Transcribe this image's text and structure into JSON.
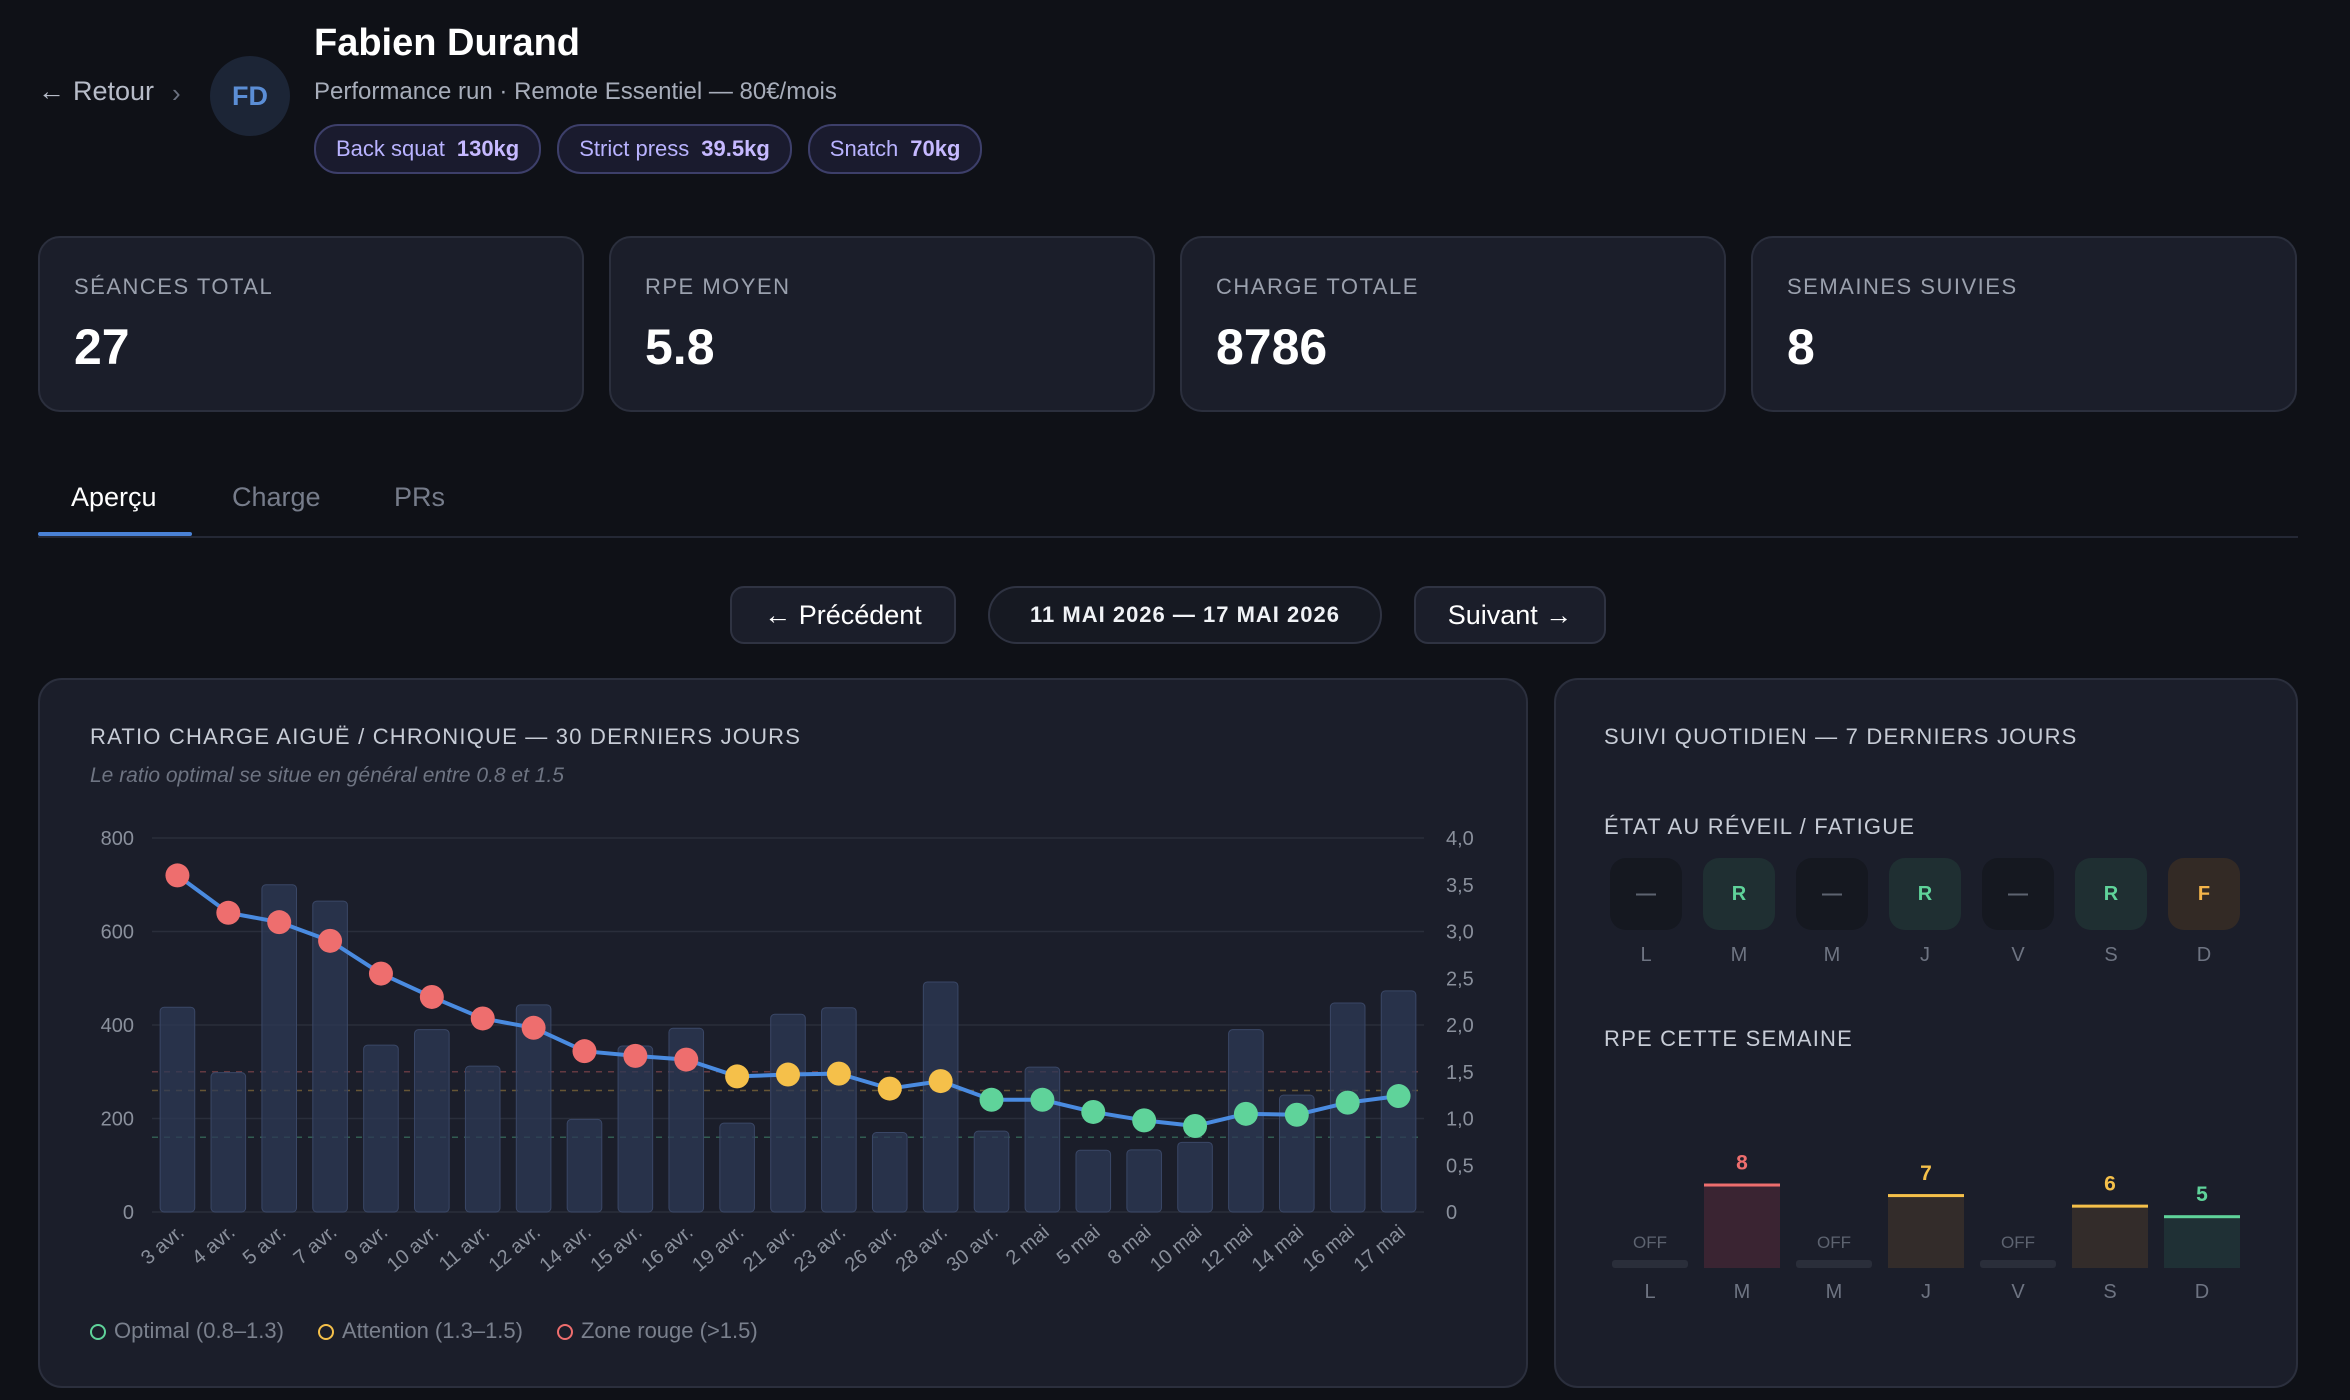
{
  "header": {
    "back_label": "Retour",
    "avatar_initials": "FD",
    "athlete_name": "Fabien Durand",
    "plan": "Performance run · Remote Essentiel — 80€/mois",
    "prs": [
      {
        "name": "Back squat",
        "value": "130kg"
      },
      {
        "name": "Strict press",
        "value": "39.5kg"
      },
      {
        "name": "Snatch",
        "value": "70kg"
      }
    ]
  },
  "stats": [
    {
      "label": "SÉANCES TOTAL",
      "value": "27"
    },
    {
      "label": "RPE MOYEN",
      "value": "5.8"
    },
    {
      "label": "CHARGE TOTALE",
      "value": "8786"
    },
    {
      "label": "SEMAINES SUIVIES",
      "value": "8"
    }
  ],
  "tabs": [
    {
      "label": "Aperçu",
      "active": true
    },
    {
      "label": "Charge",
      "active": false
    },
    {
      "label": "PRs",
      "active": false
    }
  ],
  "week_nav": {
    "prev_label": "← Précédent",
    "range_label": "11 MAI 2026 — 17 MAI 2026",
    "next_label": "Suivant →"
  },
  "acwr_panel": {
    "title": "RATIO CHARGE AIGUË / CHRONIQUE — 30 DERNIERS JOURS",
    "subtitle": "Le ratio optimal se situe en général entre 0.8 et 1.5",
    "legend": [
      {
        "label": "Optimal (0.8–1.3)",
        "color": "#5fd39a"
      },
      {
        "label": "Attention (1.3–1.5)",
        "color": "#f5c04a"
      },
      {
        "label": "Zone rouge (>1.5)",
        "color": "#ee6e6e"
      }
    ]
  },
  "chart_data": {
    "type": "bar+line",
    "categories": [
      "3 avr.",
      "4 avr.",
      "5 avr.",
      "7 avr.",
      "9 avr.",
      "10 avr.",
      "11 avr.",
      "12 avr.",
      "14 avr.",
      "15 avr.",
      "16 avr.",
      "19 avr.",
      "21 avr.",
      "23 avr.",
      "26 avr.",
      "28 avr.",
      "30 avr.",
      "2 mai",
      "5 mai",
      "8 mai",
      "10 mai",
      "12 mai",
      "14 mai",
      "16 mai",
      "17 mai"
    ],
    "series": [
      {
        "type": "bar",
        "axis": "left",
        "values": [
          438,
          298,
          700,
          665,
          357,
          390,
          312,
          443,
          198,
          355,
          393,
          190,
          423,
          437,
          170,
          492,
          173,
          310,
          132,
          133,
          149,
          390,
          250,
          447,
          473
        ]
      },
      {
        "type": "line",
        "axis": "right",
        "values": [
          3.6,
          3.2,
          3.1,
          2.9,
          2.55,
          2.3,
          2.07,
          1.97,
          1.72,
          1.67,
          1.63,
          1.45,
          1.47,
          1.48,
          1.32,
          1.4,
          1.2,
          1.2,
          1.07,
          0.98,
          0.92,
          1.05,
          1.04,
          1.17,
          1.24
        ]
      }
    ],
    "y_left": {
      "min": 0,
      "max": 800,
      "ticks": [
        "0",
        "200",
        "400",
        "600",
        "800"
      ]
    },
    "y_right": {
      "min": 0,
      "max": 4,
      "ticks": [
        "0",
        "0,5",
        "1,0",
        "1,5",
        "2,0",
        "2,5",
        "3,0",
        "3,5",
        "4,0"
      ]
    },
    "reference_lines": [
      0.8,
      1.3,
      1.5
    ],
    "zone_colors": {
      "optimal": "#5fd39a",
      "attention": "#f5c04a",
      "red": "#ee6e6e"
    },
    "bar_color": "#2e3a56",
    "line_color": "#4a8be0",
    "grid": true
  },
  "daily_panel": {
    "title": "SUIVI QUOTIDIEN — 7 DERNIERS JOURS",
    "wake_title": "ÉTAT AU RÉVEIL / FATIGUE",
    "days": [
      "L",
      "M",
      "M",
      "J",
      "V",
      "S",
      "D"
    ],
    "wake_states": [
      "—",
      "R",
      "—",
      "R",
      "—",
      "R",
      "F"
    ],
    "rpe_title": "RPE CETTE SEMAINE",
    "rpe": [
      {
        "day": "L",
        "value": null,
        "label": "OFF"
      },
      {
        "day": "M",
        "value": 8,
        "label": "8"
      },
      {
        "day": "M",
        "value": null,
        "label": "OFF"
      },
      {
        "day": "J",
        "value": 7,
        "label": "7"
      },
      {
        "day": "V",
        "value": null,
        "label": "OFF"
      },
      {
        "day": "S",
        "value": 6,
        "label": "6"
      },
      {
        "day": "D",
        "value": 5,
        "label": "5"
      }
    ]
  }
}
